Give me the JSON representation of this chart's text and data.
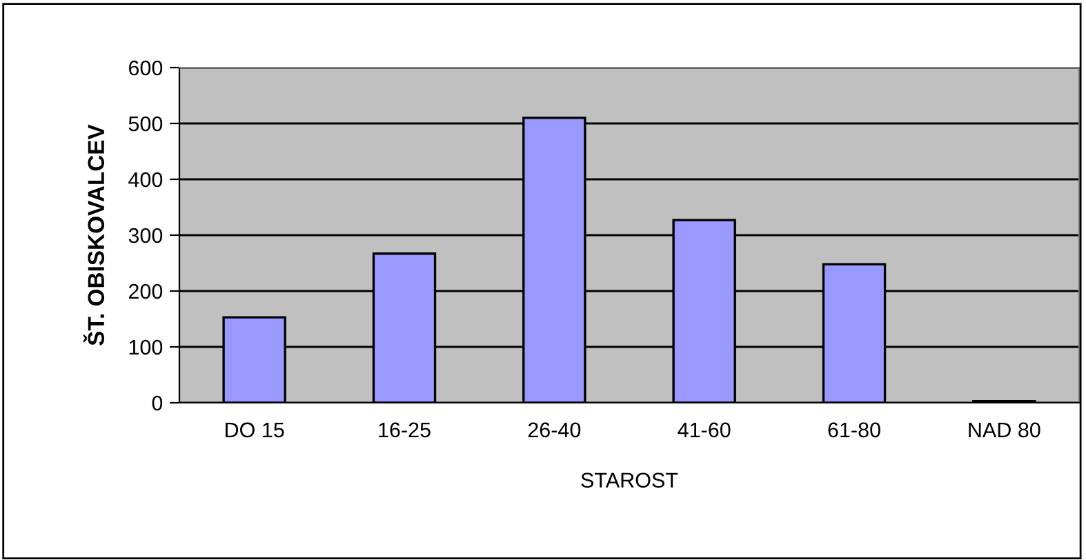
{
  "chart_data": {
    "type": "bar",
    "xlabel": "STAROST",
    "ylabel": "ŠT. OBISKOVALCEV",
    "categories": [
      "DO 15",
      "16-25",
      "26-40",
      "41-60",
      "61-80",
      "NAD 80"
    ],
    "values": [
      153,
      267,
      510,
      327,
      248,
      3
    ],
    "color": "#9999ff",
    "ylim": [
      0,
      600
    ],
    "yticks": [
      0,
      100,
      200,
      300,
      400,
      500,
      600
    ],
    "grid": "y"
  }
}
